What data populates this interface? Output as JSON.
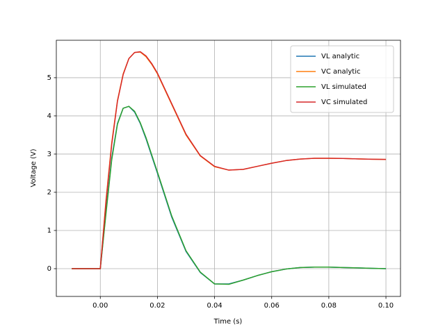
{
  "chart_data": {
    "type": "line",
    "xlabel": "Time (s)",
    "ylabel": "Voltage (V)",
    "x": [
      -0.01,
      0,
      0.002,
      0.004,
      0.006,
      0.008,
      0.01,
      0.012,
      0.014,
      0.016,
      0.018,
      0.02,
      0.025,
      0.03,
      0.035,
      0.04,
      0.045,
      0.05,
      0.055,
      0.06,
      0.065,
      0.07,
      0.075,
      0.08,
      0.085,
      0.09,
      0.095,
      0.1
    ],
    "series": [
      {
        "name": "VL analytic",
        "color": "#1f77b4",
        "values": [
          0,
          0,
          1.5,
          2.9,
          3.8,
          4.2,
          4.25,
          4.1,
          3.8,
          3.4,
          2.95,
          2.5,
          1.35,
          0.45,
          -0.1,
          -0.4,
          -0.4,
          -0.3,
          -0.18,
          -0.08,
          -0.01,
          0.03,
          0.04,
          0.04,
          0.03,
          0.02,
          0.01,
          0
        ]
      },
      {
        "name": "VC analytic",
        "color": "#ff7f0e",
        "values": [
          0,
          0,
          1.8,
          3.3,
          4.4,
          5.1,
          5.5,
          5.66,
          5.67,
          5.55,
          5.35,
          5.1,
          4.3,
          3.5,
          2.95,
          2.67,
          2.58,
          2.6,
          2.68,
          2.76,
          2.83,
          2.87,
          2.89,
          2.89,
          2.885,
          2.875,
          2.865,
          2.86
        ]
      },
      {
        "name": "VL simulated",
        "color": "#2ca02c",
        "values": [
          0,
          0,
          1.45,
          2.85,
          3.78,
          4.2,
          4.25,
          4.12,
          3.82,
          3.43,
          2.98,
          2.53,
          1.38,
          0.47,
          -0.09,
          -0.4,
          -0.41,
          -0.3,
          -0.18,
          -0.08,
          -0.01,
          0.03,
          0.04,
          0.04,
          0.03,
          0.02,
          0.01,
          0
        ]
      },
      {
        "name": "VC simulated",
        "color": "#d62728",
        "values": [
          0,
          0,
          1.75,
          3.25,
          4.38,
          5.08,
          5.5,
          5.66,
          5.68,
          5.57,
          5.37,
          5.12,
          4.32,
          3.52,
          2.96,
          2.68,
          2.58,
          2.6,
          2.68,
          2.76,
          2.83,
          2.87,
          2.89,
          2.89,
          2.885,
          2.875,
          2.865,
          2.86
        ]
      }
    ],
    "xlim": [
      -0.0154,
      0.1051
    ],
    "ylim": [
      -0.727,
      5.98
    ],
    "xticks": [
      {
        "value": 0,
        "label": "0.00"
      },
      0.02,
      0.04,
      0.06,
      0.08,
      {
        "value": 0.1,
        "label": "0.10"
      }
    ],
    "yticks": [
      0,
      1,
      2,
      3,
      4,
      5
    ],
    "grid": true,
    "legend": "upper right"
  }
}
